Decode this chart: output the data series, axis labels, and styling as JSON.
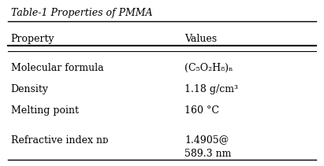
{
  "title": "Table-1 Properties of PMMA",
  "col_headers": [
    "Property",
    "Values"
  ],
  "rows": [
    [
      "Molecular formula",
      "(C₅O₂H₈)ₙ"
    ],
    [
      "Density",
      "1.18 g/cm³"
    ],
    [
      "Melting point",
      "160 °C"
    ],
    [
      "Refractive index nᴅ",
      "1.4905@\n589.3 nm"
    ]
  ],
  "bg_color": "#ffffff",
  "text_color": "#000000",
  "title_color": "#000000",
  "line_color": "#000000",
  "font_size": 9,
  "title_font_size": 9
}
